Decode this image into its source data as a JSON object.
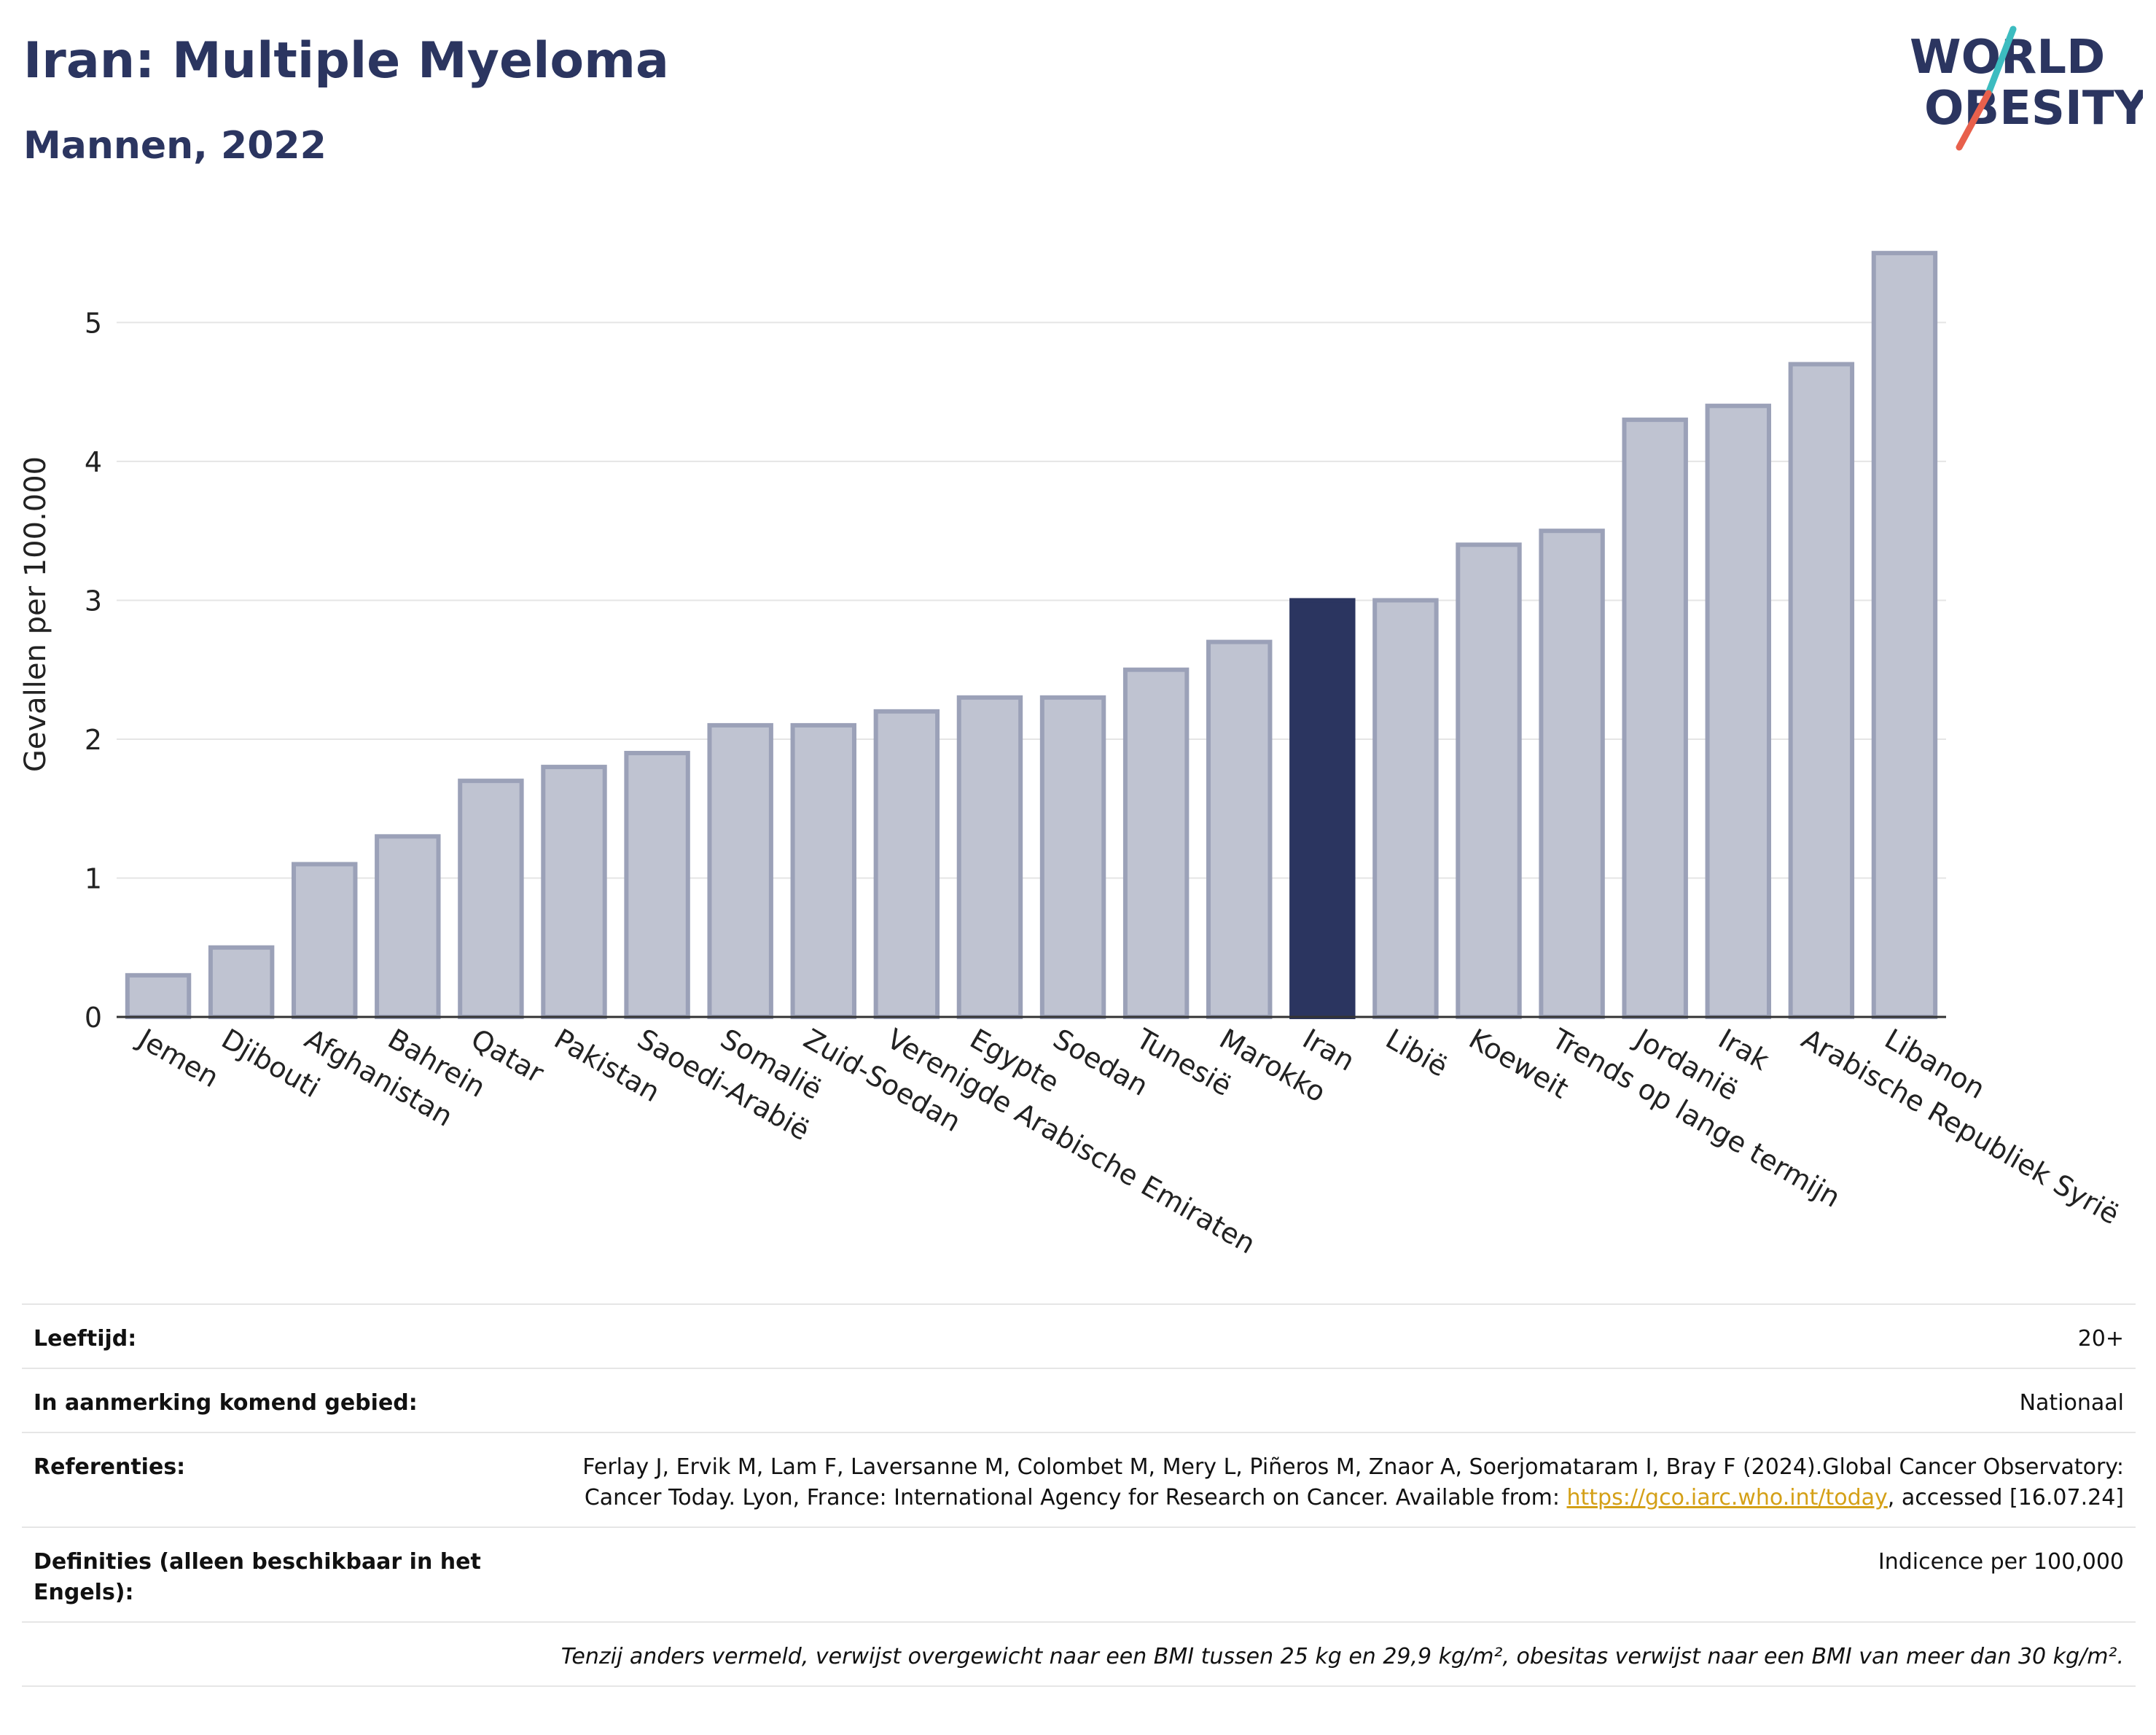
{
  "header": {
    "title": "Iran: Multiple Myeloma",
    "subtitle": "Mannen, 2022"
  },
  "logo": {
    "line1": "WORLD",
    "line2": "OBESITY",
    "slash_colors": [
      "#3cbcc0",
      "#e8604c"
    ]
  },
  "colors": {
    "highlight": "#2b3560",
    "bar": "#bfc3d1",
    "bar_border": "#9ba1b8",
    "grid": "#e5e5e5"
  },
  "chart_data": {
    "type": "bar",
    "ylabel": "Gevallen per 100.000",
    "ylim": [
      0,
      5.8
    ],
    "yticks": [
      0,
      1,
      2,
      3,
      4,
      5
    ],
    "grid": true,
    "highlight": "Iran",
    "categories": [
      "Jemen",
      "Djibouti",
      "Afghanistan",
      "Bahrein",
      "Qatar",
      "Pakistan",
      "Saoedi-Arabië",
      "Somalië",
      "Zuid-Soedan",
      "Verenigde Arabische Emiraten",
      "Egypte",
      "Soedan",
      "Tunesië",
      "Marokko",
      "Iran",
      "Libië",
      "Koeweit",
      "Trends op lange termijn",
      "Jordanië",
      "Irak",
      "Arabische Republiek Syrië",
      "Libanon"
    ],
    "values": [
      0.3,
      0.5,
      1.1,
      1.3,
      1.7,
      1.8,
      1.9,
      2.1,
      2.1,
      2.2,
      2.3,
      2.3,
      2.5,
      2.7,
      3.0,
      3.0,
      3.4,
      3.5,
      4.3,
      4.4,
      4.7,
      5.5
    ]
  },
  "footer": {
    "rows": [
      {
        "label": "Leeftijd:",
        "value": "20+"
      },
      {
        "label": "In aanmerking komend gebied:",
        "value": "Nationaal"
      },
      {
        "label": "Referenties:",
        "value_before": "Ferlay J, Ervik M, Lam F, Laversanne M, Colombet M, Mery L, Piñeros M, Znaor A, Soerjomataram I, Bray F (2024).Global Cancer Observatory: Cancer Today. Lyon, France: International Agency for Research on Cancer. Available from: ",
        "link": "https://gco.iarc.who.int/today",
        "value_after": ", accessed [16.07.24]"
      },
      {
        "label": "Definities (alleen beschikbaar in het Engels):",
        "value": "Indicence per 100,000"
      }
    ],
    "note": "Tenzij anders vermeld, verwijst overgewicht naar een BMI tussen 25 kg en 29,9 kg/m², obesitas verwijst naar een BMI van meer dan 30 kg/m²."
  }
}
